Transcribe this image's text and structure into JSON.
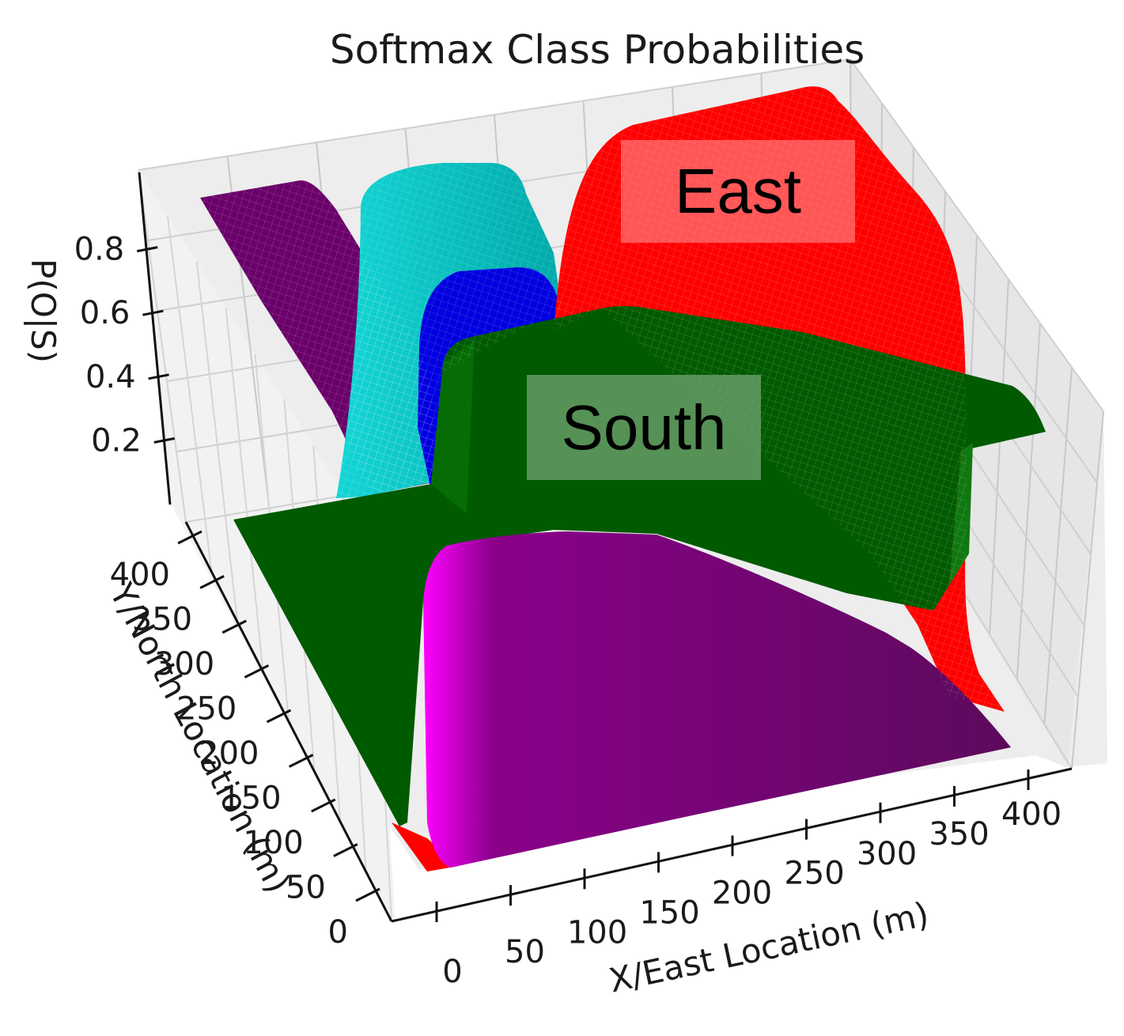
{
  "chart_data": {
    "type": "surface3d",
    "title": "Softmax Class Probabilities",
    "xlabel": "X/East Location (m)",
    "ylabel": "Y/North Location (m)",
    "zlabel": "P(O|S)",
    "x_ticks": [
      "0",
      "50",
      "100",
      "150",
      "200",
      "250",
      "300",
      "350",
      "400"
    ],
    "y_ticks": [
      "0",
      "50",
      "100",
      "150",
      "200",
      "250",
      "300",
      "350",
      "400"
    ],
    "z_ticks": [
      "0.2",
      "0.4",
      "0.6",
      "0.8"
    ],
    "xlim": [
      0,
      400
    ],
    "ylim": [
      0,
      400
    ],
    "zlim": [
      0,
      1
    ],
    "grid": true,
    "series": [
      {
        "color": "#ff0000"
      },
      {
        "color": "#005a00"
      },
      {
        "color": "#6a006a"
      },
      {
        "color": "#00c0c0"
      },
      {
        "color": "#0000e0"
      }
    ],
    "annotations": [
      {
        "text": "East",
        "color": "#ff0000"
      },
      {
        "text": "South",
        "color": "#005a00"
      }
    ]
  }
}
